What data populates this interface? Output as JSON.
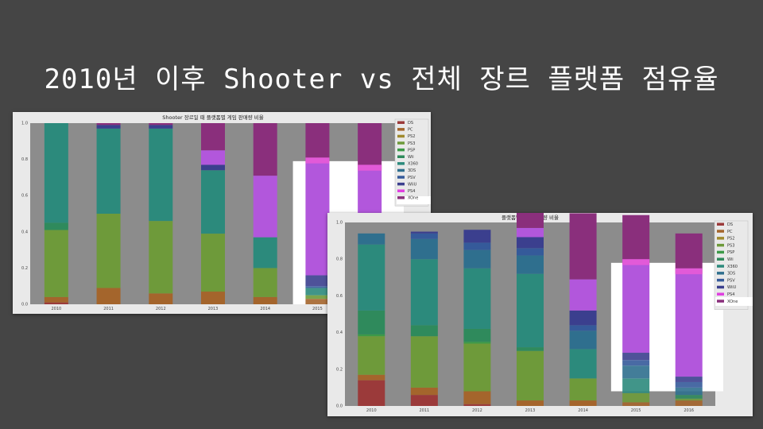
{
  "slide": {
    "title": "2010년 이후 Shooter vs 전체 장르 플랫폼 점유율"
  },
  "colors": {
    "DS": "#9b3a3a",
    "PC": "#a4652c",
    "PS2": "#a08a2e",
    "PS3": "#6e9a3a",
    "PSP": "#3c9a48",
    "Wii": "#2f8a5c",
    "X360": "#2c8a7c",
    "3DS": "#2f6f8e",
    "PSV": "#355a9a",
    "WiiU": "#3b3f8e",
    "PS4": "#b257dc",
    "XOne": "#8a2f7c"
  },
  "highlight_legend_color": "#e040e0",
  "chart_data": [
    {
      "type": "bar",
      "stacked": true,
      "title": "Shooter 장르일 때 플랫폼별 게임 판매량 비율",
      "xlabel": "",
      "ylabel": "",
      "categories": [
        "2010",
        "2011",
        "2012",
        "2013",
        "2014",
        "2015",
        "2016"
      ],
      "ylim": [
        0,
        1.0
      ],
      "yticks": [
        "0.0",
        "0.2",
        "0.4",
        "0.6",
        "0.8",
        "1.0"
      ],
      "legend_position": "right",
      "highlighted_legend": "PS4",
      "highlighted_bars": [
        "2015",
        "2016"
      ],
      "series": [
        {
          "name": "DS",
          "values": [
            0.01,
            0.0,
            0.0,
            0.0,
            0.0,
            0.0,
            0.0
          ]
        },
        {
          "name": "PC",
          "values": [
            0.03,
            0.09,
            0.06,
            0.07,
            0.04,
            0.03,
            0.02
          ]
        },
        {
          "name": "PS2",
          "values": [
            0.0,
            0.0,
            0.0,
            0.0,
            0.0,
            0.0,
            0.0
          ]
        },
        {
          "name": "PS3",
          "values": [
            0.37,
            0.41,
            0.4,
            0.32,
            0.16,
            0.02,
            0.0
          ]
        },
        {
          "name": "PSP",
          "values": [
            0.0,
            0.0,
            0.0,
            0.0,
            0.0,
            0.0,
            0.0
          ]
        },
        {
          "name": "Wii",
          "values": [
            0.04,
            0.0,
            0.0,
            0.0,
            0.0,
            0.0,
            0.0
          ]
        },
        {
          "name": "X360",
          "values": [
            0.55,
            0.47,
            0.51,
            0.35,
            0.17,
            0.04,
            0.0
          ]
        },
        {
          "name": "3DS",
          "values": [
            0.0,
            0.0,
            0.0,
            0.0,
            0.0,
            0.0,
            0.0
          ]
        },
        {
          "name": "PSV",
          "values": [
            0.0,
            0.0,
            0.0,
            0.0,
            0.0,
            0.01,
            0.0
          ]
        },
        {
          "name": "WiiU",
          "values": [
            0.0,
            0.02,
            0.02,
            0.03,
            0.0,
            0.06,
            0.01
          ]
        },
        {
          "name": "PS4",
          "values": [
            0.0,
            0.0,
            0.0,
            0.08,
            0.34,
            0.62,
            0.71
          ]
        },
        {
          "name": "XOne",
          "values": [
            0.0,
            0.01,
            0.01,
            0.15,
            0.29,
            0.22,
            0.26
          ]
        }
      ]
    },
    {
      "type": "bar",
      "stacked": true,
      "title": "플랫폼별 게임 판매량 비율",
      "xlabel": "",
      "ylabel": "",
      "categories": [
        "2010",
        "2011",
        "2012",
        "2013",
        "2014",
        "2015",
        "2016"
      ],
      "ylim": [
        0,
        1.0
      ],
      "yticks": [
        "0.0",
        "0.2",
        "0.4",
        "0.6",
        "0.8",
        "1.0"
      ],
      "legend_position": "right",
      "highlighted_legend": "PS4",
      "highlighted_bars": [
        "2015",
        "2016"
      ],
      "series": [
        {
          "name": "DS",
          "values": [
            0.14,
            0.06,
            0.01,
            0.0,
            0.0,
            0.0,
            0.0
          ]
        },
        {
          "name": "PC",
          "values": [
            0.03,
            0.04,
            0.07,
            0.03,
            0.03,
            0.02,
            0.03
          ]
        },
        {
          "name": "PS2",
          "values": [
            0.0,
            0.0,
            0.0,
            0.0,
            0.0,
            0.0,
            0.0
          ]
        },
        {
          "name": "PS3",
          "values": [
            0.21,
            0.28,
            0.26,
            0.27,
            0.12,
            0.05,
            0.01
          ]
        },
        {
          "name": "PSP",
          "values": [
            0.01,
            0.0,
            0.01,
            0.0,
            0.0,
            0.0,
            0.0
          ]
        },
        {
          "name": "Wii",
          "values": [
            0.13,
            0.06,
            0.07,
            0.02,
            0.0,
            0.0,
            0.02
          ]
        },
        {
          "name": "X360",
          "values": [
            0.36,
            0.36,
            0.33,
            0.4,
            0.16,
            0.08,
            0.0
          ]
        },
        {
          "name": "3DS",
          "values": [
            0.06,
            0.11,
            0.1,
            0.1,
            0.1,
            0.07,
            0.04
          ]
        },
        {
          "name": "PSV",
          "values": [
            0.0,
            0.03,
            0.04,
            0.04,
            0.03,
            0.03,
            0.03
          ]
        },
        {
          "name": "WiiU",
          "values": [
            0.0,
            0.01,
            0.07,
            0.06,
            0.08,
            0.04,
            0.03
          ]
        },
        {
          "name": "PS4",
          "values": [
            0.0,
            0.0,
            0.0,
            0.05,
            0.17,
            0.48,
            0.56
          ]
        },
        {
          "name": "XOne",
          "values": [
            0.0,
            0.0,
            0.0,
            0.09,
            0.36,
            0.27,
            0.22
          ]
        }
      ]
    }
  ]
}
